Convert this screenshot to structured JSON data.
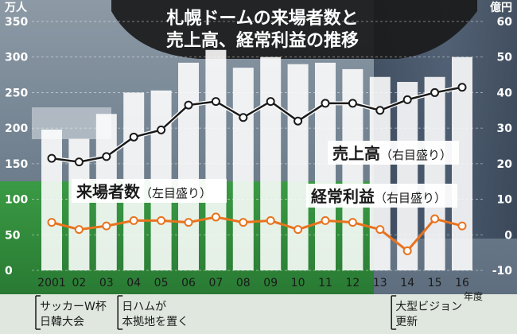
{
  "chart_data": {
    "type": "bar+line",
    "title_line1": "札幌ドームの来場者数と",
    "title_line2": "売上高、経常利益の推移",
    "y_left_unit": "万人",
    "y_right_unit": "億円",
    "x_unit": "年度",
    "left_ticks": [
      "0",
      "50",
      "100",
      "150",
      "200",
      "250",
      "300",
      "350"
    ],
    "right_ticks": [
      "-10",
      "0",
      "10",
      "20",
      "30",
      "40",
      "50",
      "60"
    ],
    "x_labels": [
      "2001",
      "02",
      "03",
      "04",
      "05",
      "06",
      "07",
      "08",
      "09",
      "10",
      "11",
      "12",
      "13",
      "14",
      "15",
      "16"
    ],
    "ylim_left": [
      0,
      350
    ],
    "ylim_right": [
      -10,
      60
    ],
    "attendance": {
      "name": "来場者数",
      "note": "（左目盛り）",
      "values": [
        198,
        185,
        220,
        250,
        253,
        292,
        310,
        285,
        300,
        290,
        292,
        283,
        272,
        265,
        272,
        300
      ]
    },
    "revenue": {
      "name": "売上高",
      "note": "（右目盛り）",
      "values": [
        21.5,
        20.5,
        22,
        27.5,
        29.5,
        36.5,
        37.5,
        33,
        37.5,
        32,
        37,
        37,
        35,
        38,
        40,
        41.5
      ]
    },
    "profit": {
      "name": "経常利益",
      "note": "（右目盛り）",
      "values": [
        3.5,
        1.5,
        2.5,
        4,
        4,
        3.5,
        5,
        3.5,
        4,
        1.5,
        4,
        3.5,
        1.5,
        -4.5,
        4.5,
        2.5
      ]
    },
    "annotations": [
      {
        "index": 0,
        "line1": "サッカーW杯",
        "line2": "日韓大会"
      },
      {
        "index": 3,
        "line1": "日ハムが",
        "line2": "本拠地を置く"
      },
      {
        "index": 13,
        "line1": "大型ビジョン",
        "line2": "更新"
      }
    ],
    "colors": {
      "bar": "#ffffff",
      "revenue_line": "#1a1a1a",
      "profit_line": "#e8731e",
      "ground": "#2e8a3a",
      "stands": "#6f7f8e",
      "title_panel": "#1a1a1a"
    }
  }
}
